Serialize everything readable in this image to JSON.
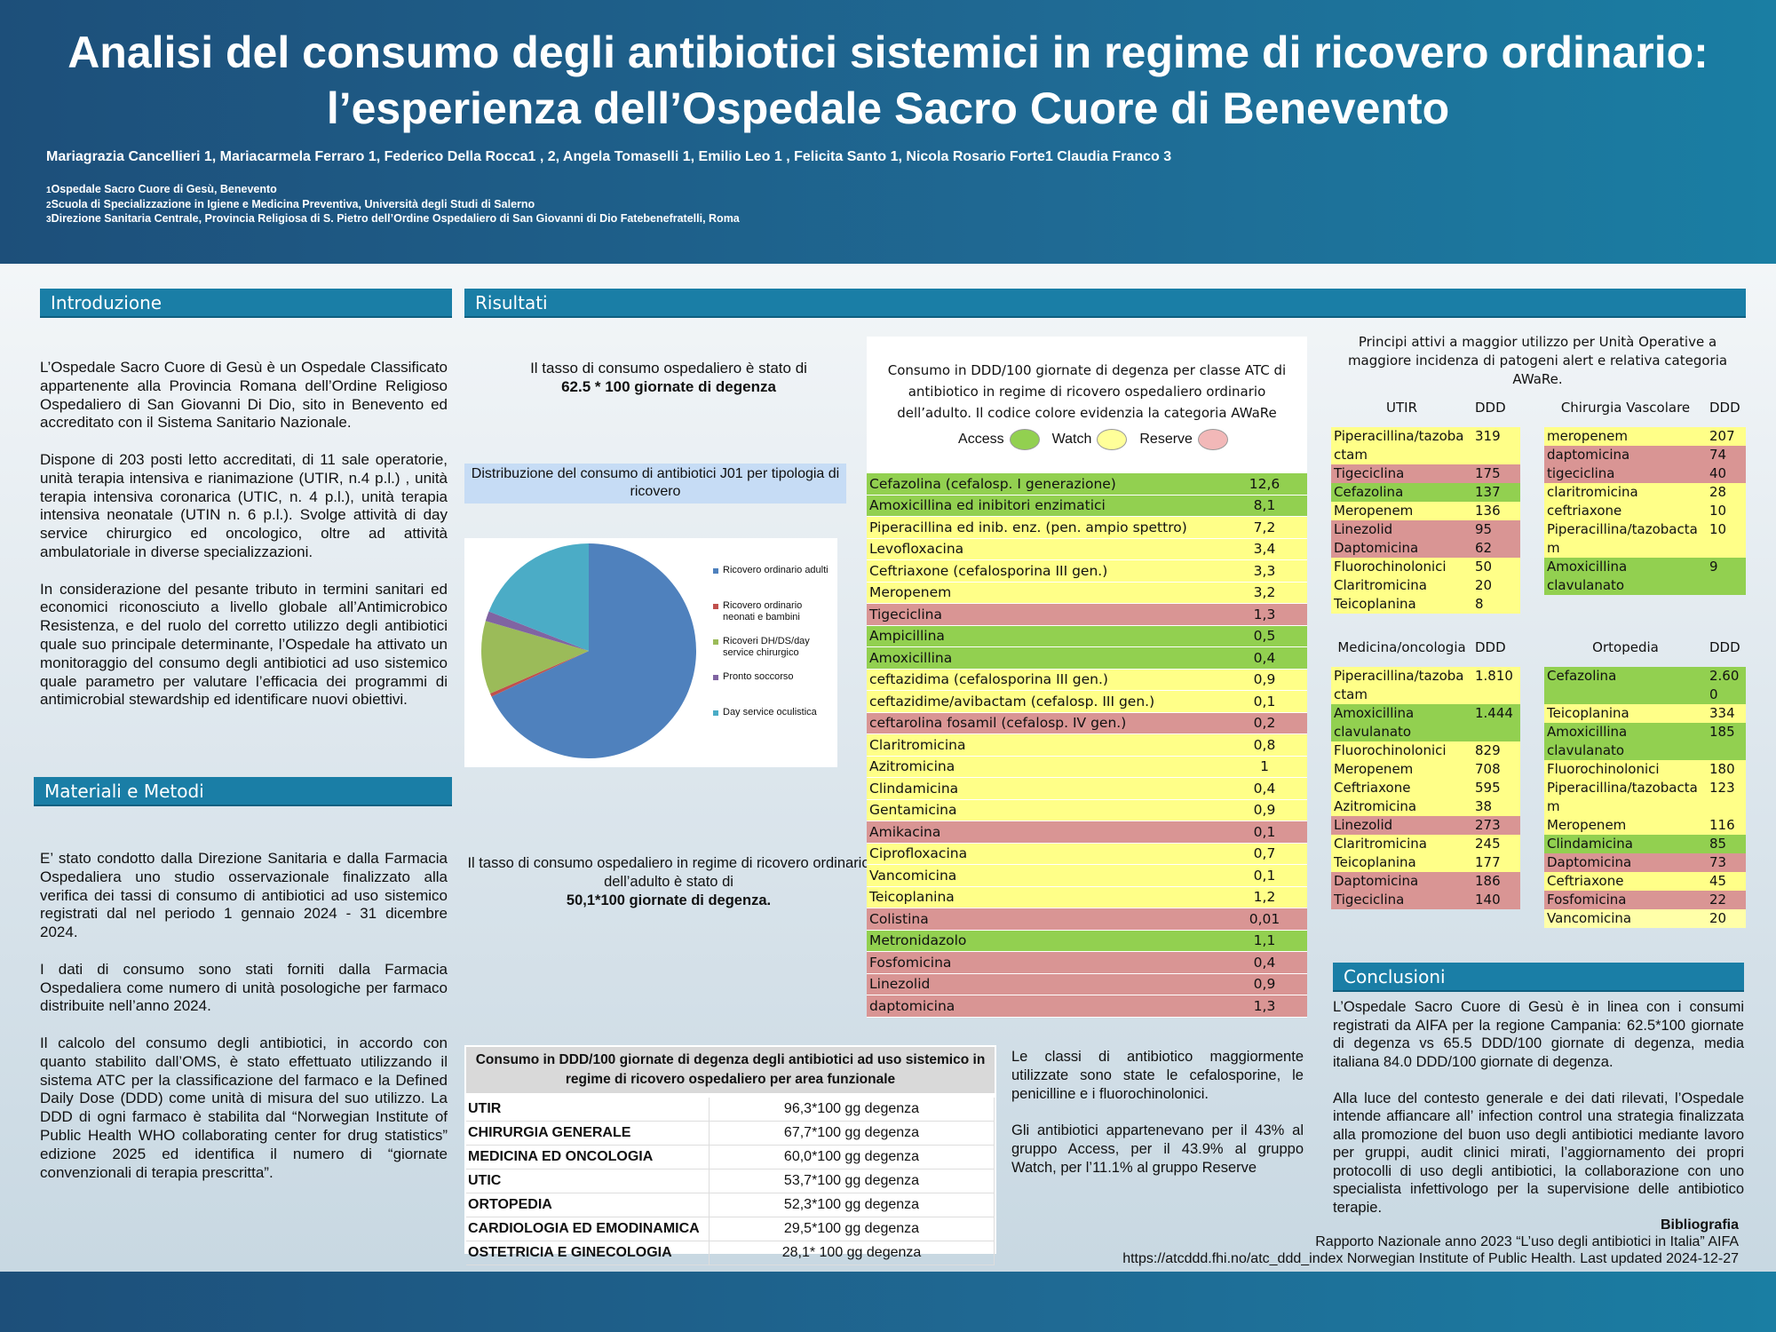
{
  "header": {
    "title_lines": [
      "Analisi del consumo degli antibiotici sistemici in regime di ricovero ordinario:",
      "l’esperienza dell’Ospedale Sacro Cuore di Benevento"
    ],
    "authors": "Mariagrazia Cancellieri 1, Mariacarmela Ferraro 1, Federico Della Rocca1 , 2, Angela Tomaselli 1, Emilio Leo 1 , Felicita Santo 1, Nicola Rosario Forte1 Claudia Franco 3",
    "affiliations": [
      {
        "num": "1",
        "text": "Ospedale  Sacro Cuore di Gesù, Benevento"
      },
      {
        "num": "2",
        "text": "Scuola di Specializzazione in Igiene e Medicina Preventiva, Università degli Studi di Salerno"
      },
      {
        "num": "3",
        "text": "Direzione Sanitaria Centrale, Provincia Religiosa di S. Pietro dell’Ordine Ospedaliero di San Giovanni di Dio Fatebenefratelli, Roma"
      }
    ]
  },
  "intro": {
    "heading": "Introduzione",
    "paragraphs": [
      "L’Ospedale Sacro Cuore di Gesù è un Ospedale Classificato appartenente alla Provincia Romana dell’Ordine Religioso Ospedaliero di San Giovanni Di Dio, sito in Benevento ed accreditato con il Sistema Sanitario Nazionale.",
      "Dispone di 203 posti letto accreditati, di 11 sale operatorie, unità terapia intensiva e rianimazione (UTIR, n.4 p.l.) , unità terapia intensiva coronarica (UTIC, n. 4 p.l.), unità terapia intensiva neonatale (UTIN n. 6 p.l.). Svolge attività di day service chirurgico ed oncologico, oltre ad attività ambulatoriale in diverse specializzazioni.",
      "In considerazione del pesante tributo in termini sanitari ed economici riconosciuto a livello globale all’Antimicrobico Resistenza, e del ruolo del corretto utilizzo degli antibiotici quale suo principale determinante, l’Ospedale  ha attivato un monitoraggio del consumo degli antibiotici ad uso sistemico quale parametro per valutare l’efficacia dei programmi di antimicrobial stewardship ed identificare nuovi obiettivi."
    ]
  },
  "methods": {
    "heading": "Materiali e Metodi",
    "paragraphs": [
      "E’ stato condotto dalla Direzione Sanitaria e dalla Farmacia Ospedaliera uno studio osservazionale finalizzato alla verifica dei tassi di consumo di antibiotici ad uso sistemico registrati dal nel periodo 1 gennaio 2024 - 31 dicembre 2024.",
      "I dati di consumo sono stati forniti dalla Farmacia Ospedaliera come numero di unità posologiche per farmaco distribuite nell’anno 2024.",
      "Il calcolo del consumo degli antibiotici, in accordo con quanto stabilito dall’OMS, è stato effettuato utilizzando il sistema ATC per la classificazione del farmaco e la Defined Daily Dose (DDD) come unità di misura del suo utilizzo. La DDD di ogni farmaco è stabilita dal “Norwegian Institute of Public Health WHO collaborating center for drug statistics” edizione 2025 ed identifica il numero di “giornate convenzionali di terapia prescritta”."
    ]
  },
  "results": {
    "heading": "Risultati",
    "rate_note": {
      "text": "Il tasso di consumo ospedaliero è stato di",
      "value": "62.5 * 100 giornate di degenza"
    },
    "pie": {
      "title": "Distribuzione del consumo di antibiotici J01 per tipologia di ricovero",
      "categories": [
        "Ricovero ordinario adulti",
        "Ricovero ordinario neonati e bambini",
        "Ricoveri DH/DS/day service chirurgico",
        "Pronto soccorso",
        "Day service oculistica"
      ],
      "values": [
        68,
        0.5,
        11,
        1.5,
        19
      ],
      "colors": [
        "#4f81bd",
        "#c0504d",
        "#9bbb59",
        "#8064a2",
        "#4bacc6"
      ]
    },
    "adult_note": {
      "text": "Il tasso di consumo ospedaliero in regime di ricovero ordinario dell’adulto è stato di",
      "value": "50,1*100 giornate di degenza."
    },
    "atc_table": {
      "title": "Consumo in DDD/100 giornate di degenza per classe ATC di antibiotico in regime di ricovero ospedaliero ordinario dell’adulto. Il codice colore evidenzia la categoria AWaRe",
      "legend": [
        {
          "label": "Access",
          "color": "#92d050"
        },
        {
          "label": "Watch",
          "color": "#ffff99"
        },
        {
          "label": "Reserve",
          "color": "#f2b8b8"
        }
      ],
      "rows": [
        {
          "name": "Cefazolina (cefalosp. I generazione)",
          "value": "12,6",
          "color": "#92d050"
        },
        {
          "name": "Amoxicillina ed inibitori enzimatici",
          "value": "8,1",
          "color": "#92d050"
        },
        {
          "name": "Piperacillina ed inib. enz. (pen. ampio spettro)",
          "value": "7,2",
          "color": "#ffff88"
        },
        {
          "name": "Levofloxacina",
          "value": "3,4",
          "color": "#ffff88"
        },
        {
          "name": "Ceftriaxone (cefalosporina III gen.)",
          "value": "3,3",
          "color": "#ffff88"
        },
        {
          "name": "Meropenem",
          "value": "3,2",
          "color": "#ffff88"
        },
        {
          "name": "Tigeciclina",
          "value": "1,3",
          "color": "#d99594"
        },
        {
          "name": "Ampicillina",
          "value": "0,5",
          "color": "#92d050"
        },
        {
          "name": "Amoxicillina",
          "value": "0,4",
          "color": "#92d050"
        },
        {
          "name": "ceftazidima (cefalosporina III gen.)",
          "value": "0,9",
          "color": "#ffff88"
        },
        {
          "name": "ceftazidime/avibactam (cefalosp. III gen.)",
          "value": "0,1",
          "color": "#ffff88"
        },
        {
          "name": "ceftarolina fosamil (cefalosp. IV gen.)",
          "value": "0,2",
          "color": "#d99594"
        },
        {
          "name": "Claritromicina",
          "value": "0,8",
          "color": "#ffff88"
        },
        {
          "name": "Azitromicina",
          "value": "1",
          "color": "#ffff88"
        },
        {
          "name": "Clindamicina",
          "value": "0,4",
          "color": "#ffff88"
        },
        {
          "name": "Gentamicina",
          "value": "0,9",
          "color": "#ffff88"
        },
        {
          "name": "Amikacina",
          "value": "0,1",
          "color": "#d99594"
        },
        {
          "name": "Ciprofloxacina",
          "value": "0,7",
          "color": "#ffff88"
        },
        {
          "name": "Vancomicina",
          "value": "0,1",
          "color": "#ffff88"
        },
        {
          "name": "Teicoplanina",
          "value": "1,2",
          "color": "#ffff88"
        },
        {
          "name": "Colistina",
          "value": "0,01",
          "color": "#d99594"
        },
        {
          "name": "Metronidazolo",
          "value": "1,1",
          "color": "#92d050"
        },
        {
          "name": "Fosfomicina",
          "value": "0,4",
          "color": "#d99594"
        },
        {
          "name": "Linezolid",
          "value": "0,9",
          "color": "#d99594"
        },
        {
          "name": "daptomicina",
          "value": "1,3",
          "color": "#d99594"
        }
      ]
    },
    "area_table": {
      "title": "Consumo in DDD/100 giornate di degenza degli antibiotici ad uso sistemico in regime di ricovero ospedaliero per area funzionale",
      "rows": [
        [
          "UTIR",
          "96,3*100 gg degenza"
        ],
        [
          "CHIRURGIA GENERALE",
          "67,7*100 gg degenza"
        ],
        [
          "MEDICINA ED ONCOLOGIA",
          "60,0*100 gg degenza"
        ],
        [
          "UTIC",
          "53,7*100 gg degenza"
        ],
        [
          "ORTOPEDIA",
          "52,3*100 gg degenza"
        ],
        [
          "CARDIOLOGIA ED EMODINAMICA",
          "29,5*100 gg degenza"
        ],
        [
          "OSTETRICIA E GINECOLOGIA",
          "28,1* 100 gg degenza"
        ]
      ]
    },
    "comments": [
      "Le classi di antibiotico maggiormente utilizzate sono state le cefalosporine, le penicilline  e i fluorochinolonici.",
      "Gli antibiotici appartenevano per il 43% al gruppo Access, per il 43.9% al gruppo Watch, per l’11.1% al gruppo Reserve"
    ],
    "units": {
      "title": "Principi attivi a maggior utilizzo per  Unità Operative a maggiore incidenza di patogeni alert e relativa categoria AWaRe.",
      "tables": [
        {
          "unit": "UTIR",
          "column": "DDD",
          "rows": [
            {
              "name": "Piperacillina/tazobactam",
              "value": "319",
              "color": "#ffff88"
            },
            {
              "name": "Tigeciclina",
              "value": "175",
              "color": "#d99594"
            },
            {
              "name": "Cefazolina",
              "value": "137",
              "color": "#92d050"
            },
            {
              "name": "Meropenem",
              "value": "136",
              "color": "#ffff88"
            },
            {
              "name": "Linezolid",
              "value": "95",
              "color": "#d99594"
            },
            {
              "name": "Daptomicina",
              "value": "62",
              "color": "#d99594"
            },
            {
              "name": "Fluorochinolonici",
              "value": "50",
              "color": "#ffff88"
            },
            {
              "name": "Claritromicina",
              "value": "20",
              "color": "#ffff88"
            },
            {
              "name": "Teicoplanina",
              "value": "8",
              "color": "#ffff88"
            }
          ]
        },
        {
          "unit": "Chirurgia Vascolare",
          "column": "DDD",
          "rows": [
            {
              "name": "meropenem",
              "value": "207",
              "color": "#ffff88"
            },
            {
              "name": "daptomicina",
              "value": "74",
              "color": "#d99594"
            },
            {
              "name": "tigeciclina",
              "value": "40",
              "color": "#d99594"
            },
            {
              "name": "claritromicina",
              "value": "28",
              "color": "#ffff88"
            },
            {
              "name": "ceftriaxone",
              "value": "10",
              "color": "#ffff88"
            },
            {
              "name": "Piperacillina/tazobactam",
              "value": "10",
              "color": "#ffff88"
            },
            {
              "name": "Amoxicillina clavulanato",
              "value": "9",
              "color": "#92d050"
            }
          ]
        },
        {
          "unit": "Medicina/oncologia",
          "column": "DDD",
          "rows": [
            {
              "name": "Piperacillina/tazobactam",
              "value": "1.810",
              "color": "#ffff88"
            },
            {
              "name": "Amoxicillina clavulanato",
              "value": "1.444",
              "color": "#92d050"
            },
            {
              "name": "Fluorochinolonici",
              "value": "829",
              "color": "#ffff88"
            },
            {
              "name": "Meropenem",
              "value": "708",
              "color": "#ffff88"
            },
            {
              "name": "Ceftriaxone",
              "value": "595",
              "color": "#ffff88"
            },
            {
              "name": "Azitromicina",
              "value": "38",
              "color": "#ffff88"
            },
            {
              "name": "Linezolid",
              "value": "273",
              "color": "#d99594"
            },
            {
              "name": "Claritromicina",
              "value": "245",
              "color": "#ffff88"
            },
            {
              "name": "Teicoplanina",
              "value": "177",
              "color": "#ffff88"
            },
            {
              "name": "Daptomicina",
              "value": "186",
              "color": "#d99594"
            },
            {
              "name": "Tigeciclina",
              "value": "140",
              "color": "#d99594"
            }
          ]
        },
        {
          "unit": "Ortopedia",
          "column": "DDD",
          "rows": [
            {
              "name": "Cefazolina",
              "value": "2.600",
              "color": "#92d050"
            },
            {
              "name": "Teicoplanina",
              "value": "334",
              "color": "#ffff88"
            },
            {
              "name": "Amoxicillina clavulanato",
              "value": "185",
              "color": "#92d050"
            },
            {
              "name": "Fluorochinolonici",
              "value": "180",
              "color": "#ffff88"
            },
            {
              "name": "Piperacillina/tazobactam",
              "value": "123",
              "color": "#ffff88"
            },
            {
              "name": "Meropenem",
              "value": "116",
              "color": "#ffff88"
            },
            {
              "name": "Clindamicina",
              "value": "85",
              "color": "#92d050"
            },
            {
              "name": "Daptomicina",
              "value": "73",
              "color": "#d99594"
            },
            {
              "name": "Ceftriaxone",
              "value": "45",
              "color": "#ffff88"
            },
            {
              "name": "Fosfomicina",
              "value": "22",
              "color": "#d99594"
            },
            {
              "name": "Vancomicina",
              "value": "20",
              "color": "#ffffa8"
            }
          ]
        }
      ]
    }
  },
  "conclusions": {
    "heading": "Conclusioni",
    "paragraphs": [
      "L’Ospedale Sacro Cuore di Gesù è in linea con i consumi registrati da AIFA per la regione Campania: 62.5*100 giornate di degenza vs 65.5 DDD/100 giornate di degenza, media italiana 84.0 DDD/100 giornate di degenza.",
      "Alla luce del contesto generale e dei dati rilevati, l’Ospedale intende affiancare all’ infection control una strategia finalizzata alla promozione del buon uso degli antibiotici mediante lavoro per gruppi, audit clinici mirati, l’aggiornamento dei propri protocolli di uso degli antibiotici, la collaborazione con uno specialista infettivologo per la supervisione delle antibiotico terapie."
    ]
  },
  "bibliography": {
    "heading": "Bibliografia",
    "entries": [
      "Rapporto Nazionale anno 2023 “L’uso degli antibiotici in Italia” AIFA",
      "https://atcddd.fhi.no/atc_ddd_index  Norwegian Institute of Public Health. Last updated 2024-12-27"
    ]
  }
}
